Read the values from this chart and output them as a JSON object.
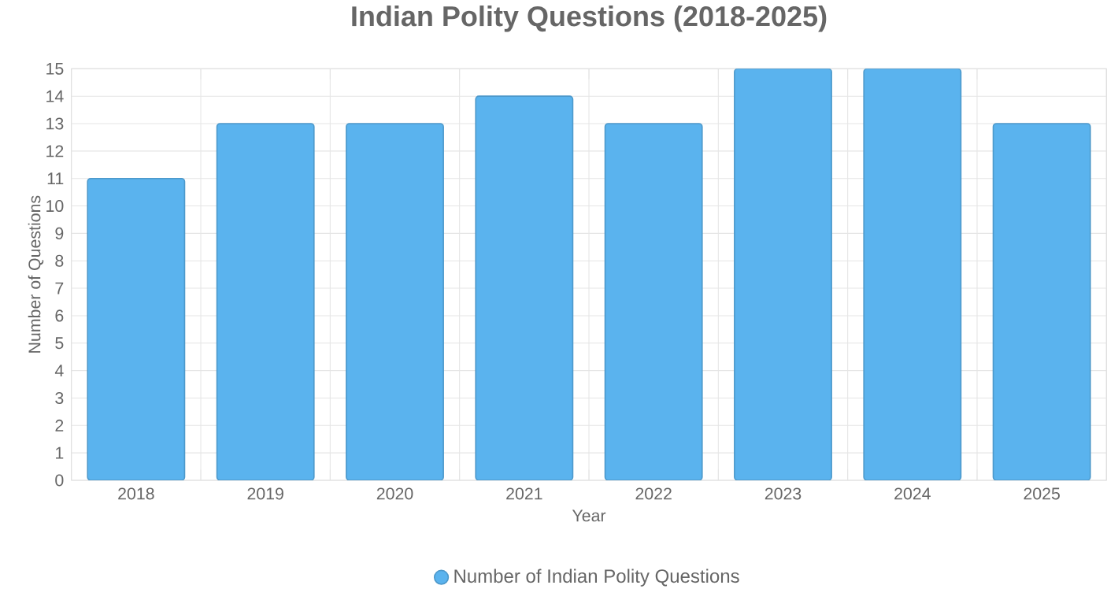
{
  "chart_data": {
    "type": "bar",
    "title": "Indian Polity Questions (2018-2025)",
    "xlabel": "Year",
    "ylabel": "Number of Questions",
    "categories": [
      "2018",
      "2019",
      "2020",
      "2021",
      "2022",
      "2023",
      "2024",
      "2025"
    ],
    "series": [
      {
        "name": "Number of Indian Polity Questions",
        "color": "#5ab3ee",
        "values": [
          11,
          13,
          13,
          14,
          13,
          15,
          15,
          13
        ]
      }
    ],
    "ylim": [
      0,
      15
    ],
    "yticks": [
      0,
      1,
      2,
      3,
      4,
      5,
      6,
      7,
      8,
      9,
      10,
      11,
      12,
      13,
      14,
      15
    ],
    "grid": true,
    "legend": "bottom",
    "marker": "circle"
  }
}
